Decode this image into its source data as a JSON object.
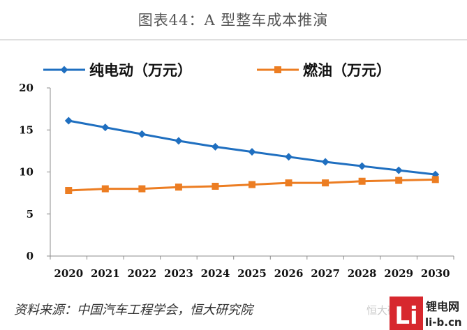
{
  "chart_data": {
    "type": "line",
    "title": "图表44：A 型整车成本推演",
    "x": [
      "2020",
      "2021",
      "2022",
      "2023",
      "2024",
      "2025",
      "2026",
      "2027",
      "2028",
      "2029",
      "2030"
    ],
    "series": [
      {
        "name": "纯电动（万元）",
        "color": "#1f6fc0",
        "marker": "diamond",
        "values": [
          16.1,
          15.3,
          14.5,
          13.7,
          13.0,
          12.4,
          11.8,
          11.2,
          10.7,
          10.2,
          9.7
        ]
      },
      {
        "name": "燃油（万元）",
        "color": "#ec7d22",
        "marker": "square",
        "values": [
          7.8,
          8.0,
          8.0,
          8.2,
          8.3,
          8.5,
          8.7,
          8.7,
          8.9,
          9.0,
          9.1
        ]
      }
    ],
    "ylim": [
      0,
      20
    ],
    "yticks": [
      "0",
      "5",
      "10",
      "15",
      "20"
    ],
    "xlabel": "",
    "ylabel": "",
    "grid": false,
    "legend_position": "top"
  },
  "source_note": "资料来源：中国汽车工程学会，恒大研究院",
  "watermark_logo_text": "Li",
  "watermark_brand_line1": "锂电网",
  "watermark_brand_line2": "li-b.cn",
  "watermark_faint_text": "恒大研究院"
}
